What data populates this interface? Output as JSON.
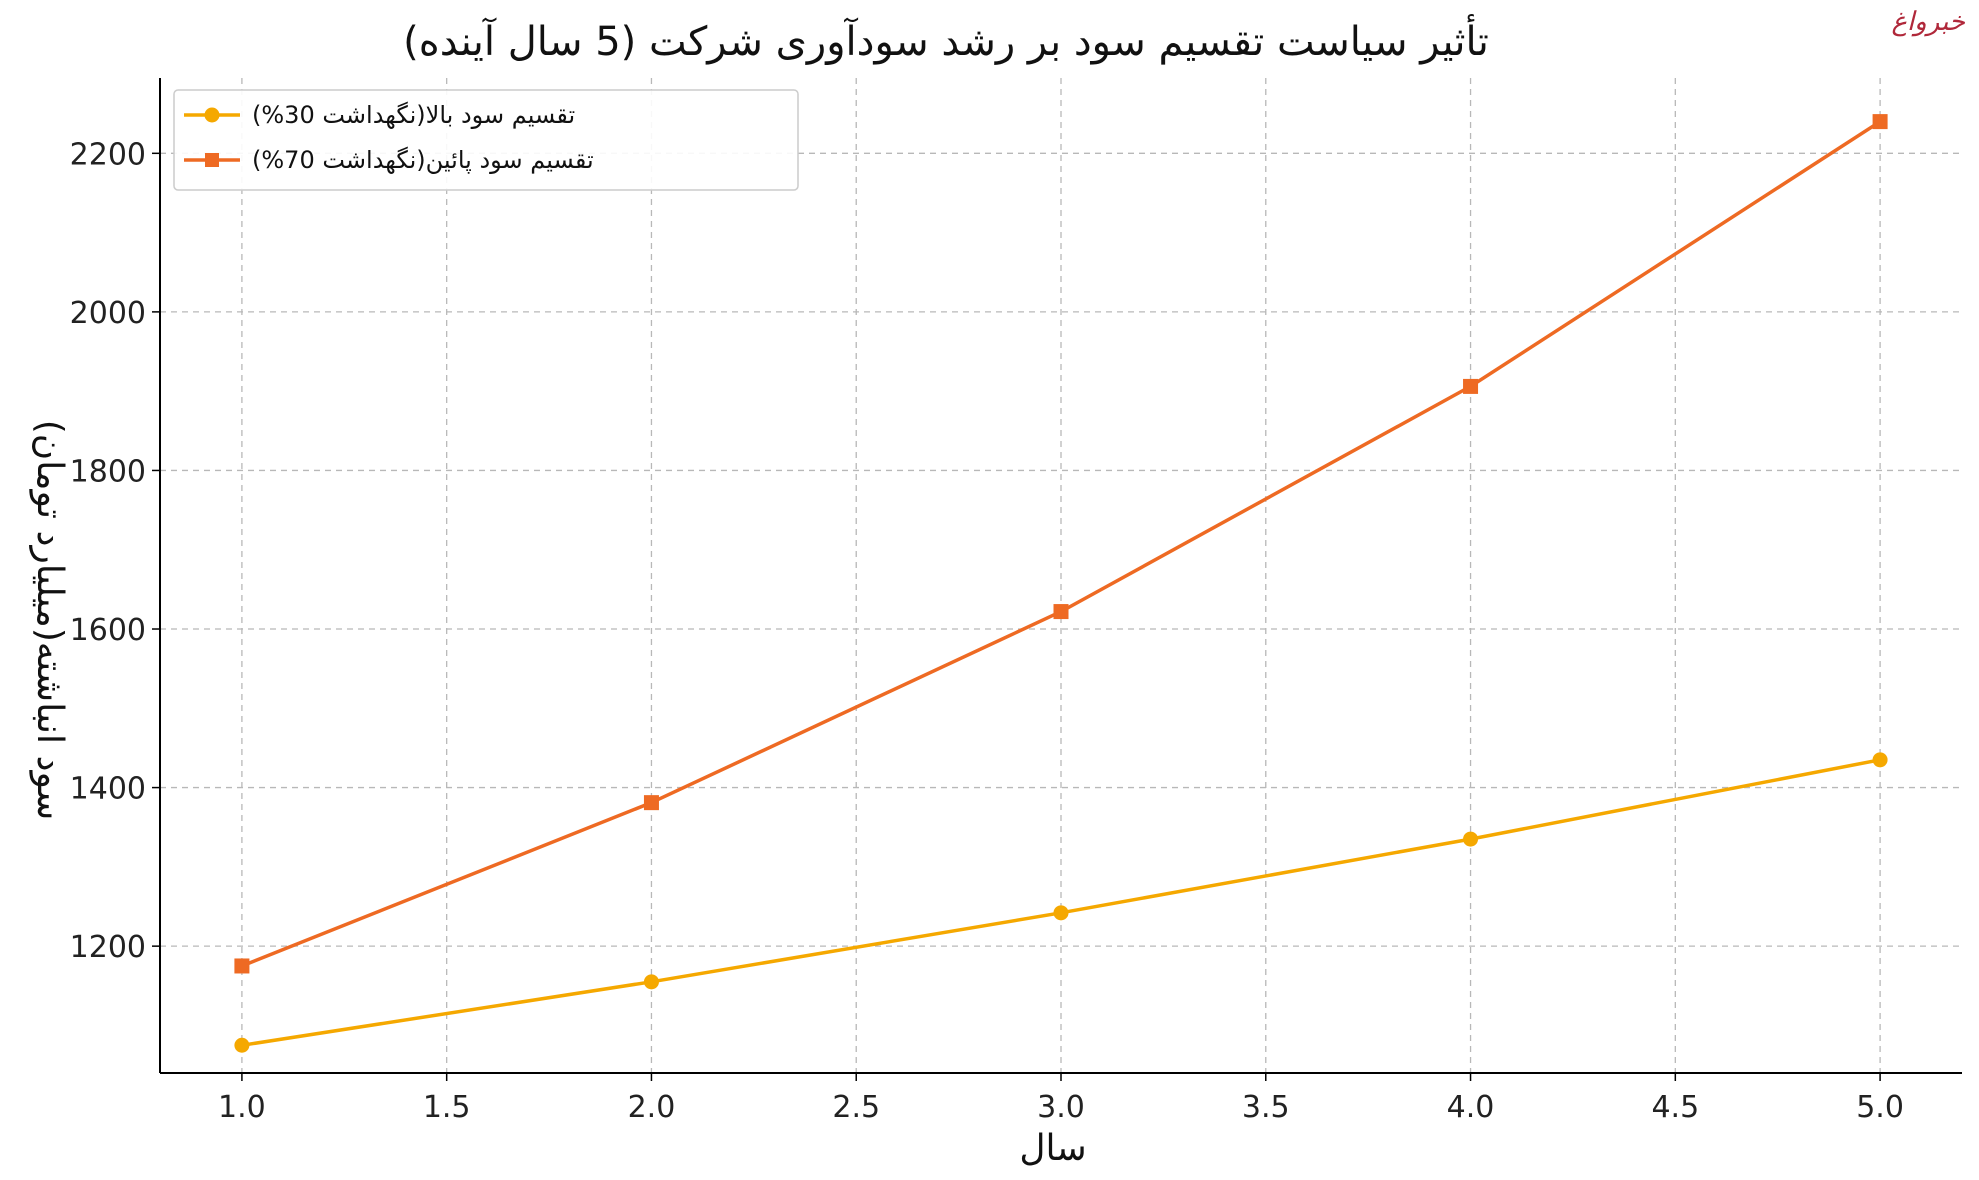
{
  "watermark": "خبرواغ",
  "colors": {
    "series_high_payout": "#f5a800",
    "series_low_payout": "#ee6a23",
    "grid": "#b8b8b8",
    "axis": "#000000"
  },
  "chart_data": {
    "type": "line",
    "title": "تأثیر سیاست تقسیم سود بر رشد سودآوری شرکت (5 سال آینده)",
    "xlabel": "سال",
    "ylabel": "سود انباشته(میلیارد تومان)",
    "xlim": [
      0.8,
      5.2
    ],
    "ylim": [
      1040,
      2295
    ],
    "x_ticks": [
      "1.0",
      "1.5",
      "2.0",
      "2.5",
      "3.0",
      "3.5",
      "4.0",
      "4.5",
      "5.0"
    ],
    "y_ticks": [
      "1200",
      "1400",
      "1600",
      "1800",
      "2000",
      "2200"
    ],
    "grid": true,
    "legend_position": "top-left",
    "series": [
      {
        "name": "تقسیم سود بالا(نگهداشت 30%)",
        "marker": "circle",
        "color": "#f5a800",
        "x": [
          1,
          2,
          3,
          4,
          5
        ],
        "y": [
          1075,
          1155,
          1242,
          1335,
          1435
        ]
      },
      {
        "name": "تقسیم سود پائین(نگهداشت 70%)",
        "marker": "square",
        "color": "#ee6a23",
        "x": [
          1,
          2,
          3,
          4,
          5
        ],
        "y": [
          1175,
          1381,
          1622,
          1906,
          2240
        ]
      }
    ]
  }
}
